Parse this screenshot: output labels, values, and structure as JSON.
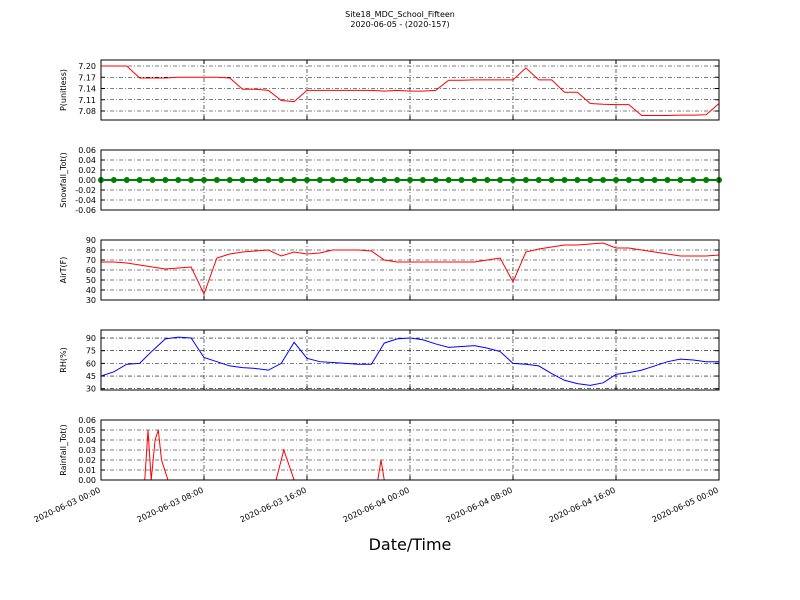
{
  "title": "Site18_MDC_School_Fifteen",
  "subtitle": "2020-06-05 - (2020-157)",
  "xlabel": "Date/Time",
  "xlim": [
    0,
    48
  ],
  "xticks": [
    {
      "value": 0,
      "label": "2020-06-03 00:00"
    },
    {
      "value": 8,
      "label": "2020-06-03 08:00"
    },
    {
      "value": 16,
      "label": "2020-06-03 16:00"
    },
    {
      "value": 24,
      "label": "2020-06-04 00:00"
    },
    {
      "value": 32,
      "label": "2020-06-04 08:00"
    },
    {
      "value": 40,
      "label": "2020-06-04 16:00"
    },
    {
      "value": 48,
      "label": "2020-06-05 00:00"
    }
  ],
  "chart_data": [
    {
      "type": "line",
      "ylabel": "P(unitless)",
      "color": "#ff0000",
      "grid": true,
      "x": [
        0,
        1,
        2,
        3,
        4,
        5,
        6,
        7,
        8,
        9,
        10,
        11,
        12,
        13,
        14,
        15,
        16,
        17,
        18,
        19,
        20,
        21,
        22,
        23,
        24,
        25,
        26,
        27,
        28,
        29,
        30,
        31,
        32,
        33,
        34,
        35,
        36,
        37,
        38,
        39,
        40,
        41,
        42,
        43,
        44,
        45,
        46,
        47,
        48
      ],
      "values": [
        7.2,
        7.2,
        7.2,
        7.168,
        7.168,
        7.168,
        7.17,
        7.17,
        7.17,
        7.17,
        7.168,
        7.138,
        7.138,
        7.135,
        7.108,
        7.105,
        7.135,
        7.135,
        7.135,
        7.135,
        7.135,
        7.135,
        7.133,
        7.135,
        7.133,
        7.133,
        7.135,
        7.162,
        7.162,
        7.163,
        7.163,
        7.163,
        7.163,
        7.195,
        7.163,
        7.163,
        7.13,
        7.13,
        7.1,
        7.098,
        7.097,
        7.097,
        7.068,
        7.068,
        7.068,
        7.069,
        7.069,
        7.07,
        7.1
      ],
      "ylim": [
        7.056,
        7.216
      ],
      "yticks": [
        7.08,
        7.11,
        7.14,
        7.17,
        {
          "value": 7.2,
          "label": "7.20"
        }
      ]
    },
    {
      "type": "line",
      "ylabel": "Snowfall_Tot()",
      "color": "#008000",
      "grid": true,
      "marker": true,
      "x": [
        0,
        1,
        2,
        3,
        4,
        5,
        6,
        7,
        8,
        9,
        10,
        11,
        12,
        13,
        14,
        15,
        16,
        17,
        18,
        19,
        20,
        21,
        22,
        23,
        24,
        25,
        26,
        27,
        28,
        29,
        30,
        31,
        32,
        33,
        34,
        35,
        36,
        37,
        38,
        39,
        40,
        41,
        42,
        43,
        44,
        45,
        46,
        47,
        48
      ],
      "values": [
        0,
        0,
        0,
        0,
        0,
        0,
        0,
        0,
        0,
        0,
        0,
        0,
        0,
        0,
        0,
        0,
        0,
        0,
        0,
        0,
        0,
        0,
        0,
        0,
        0,
        0,
        0,
        0,
        0,
        0,
        0,
        0,
        0,
        0,
        0,
        0,
        0,
        0,
        0,
        0,
        0,
        0,
        0,
        0,
        0,
        0,
        0,
        0,
        0
      ],
      "ylim": [
        -0.06,
        0.06
      ],
      "yticks": [
        -0.06,
        -0.04,
        -0.02,
        {
          "value": 0,
          "label": "0.00"
        },
        0.02,
        0.04,
        0.06
      ]
    },
    {
      "type": "line",
      "ylabel": "AirT(F)",
      "color": "#ff0000",
      "grid": true,
      "x": [
        0,
        1,
        2,
        3,
        4,
        5,
        6,
        7,
        8,
        9,
        10,
        11,
        12,
        13,
        14,
        15,
        16,
        17,
        18,
        19,
        20,
        21,
        22,
        23,
        24,
        25,
        26,
        27,
        28,
        29,
        30,
        31,
        32,
        33,
        34,
        35,
        36,
        37,
        38,
        39,
        40,
        41,
        42,
        43,
        44,
        45,
        46,
        47,
        48
      ],
      "values": [
        68,
        68,
        67,
        65,
        63,
        61,
        62,
        63,
        36,
        72,
        76,
        78,
        79,
        80,
        74,
        78,
        76,
        77,
        80,
        80,
        80,
        79,
        70,
        68,
        68,
        68,
        68,
        68,
        68,
        68,
        70,
        72,
        48,
        78,
        81,
        83,
        85,
        85,
        86,
        87,
        82,
        82,
        80,
        78,
        76,
        74,
        74,
        74,
        75
      ],
      "ylim": [
        30,
        90
      ],
      "yticks": [
        30,
        40,
        50,
        60,
        70,
        80,
        90
      ]
    },
    {
      "type": "line",
      "ylabel": "RH(%)",
      "color": "#0000ff",
      "grid": true,
      "x": [
        0,
        1,
        2,
        3,
        4,
        5,
        6,
        7,
        8,
        9,
        10,
        11,
        12,
        13,
        14,
        15,
        16,
        17,
        18,
        19,
        20,
        21,
        22,
        23,
        24,
        25,
        26,
        27,
        28,
        29,
        30,
        31,
        32,
        33,
        34,
        35,
        36,
        37,
        38,
        39,
        40,
        41,
        42,
        43,
        44,
        45,
        46,
        47,
        48
      ],
      "values": [
        45,
        50,
        59,
        60,
        75,
        89,
        91,
        90,
        67,
        62,
        57,
        55,
        54,
        52,
        60,
        85,
        66,
        62,
        61,
        60,
        59,
        59,
        84,
        89,
        90,
        88,
        83,
        79,
        80,
        81,
        78,
        74,
        60,
        59,
        57,
        48,
        40,
        36,
        34,
        37,
        47,
        49,
        52,
        57,
        62,
        65,
        64,
        62,
        62
      ],
      "ylim": [
        28.5,
        99.5
      ],
      "yticks": [
        30,
        45,
        60,
        75,
        90
      ]
    },
    {
      "type": "line",
      "ylabel": "Rainfall_Tot()",
      "color": "#ff0000",
      "grid": true,
      "x": [
        0,
        3.4,
        3.65,
        3.9,
        4.2,
        4.45,
        4.7,
        5.2,
        13.6,
        14.2,
        15,
        21.5,
        21.75,
        22,
        48
      ],
      "values": [
        0,
        0,
        0.05,
        0,
        0.04,
        0.05,
        0.02,
        0,
        0,
        0.03,
        0,
        0,
        0.02,
        0,
        0
      ],
      "ylim": [
        0,
        0.06
      ],
      "yticks": [
        {
          "value": 0,
          "label": "0.00"
        },
        0.01,
        0.02,
        0.03,
        0.04,
        0.05,
        0.06
      ]
    }
  ]
}
